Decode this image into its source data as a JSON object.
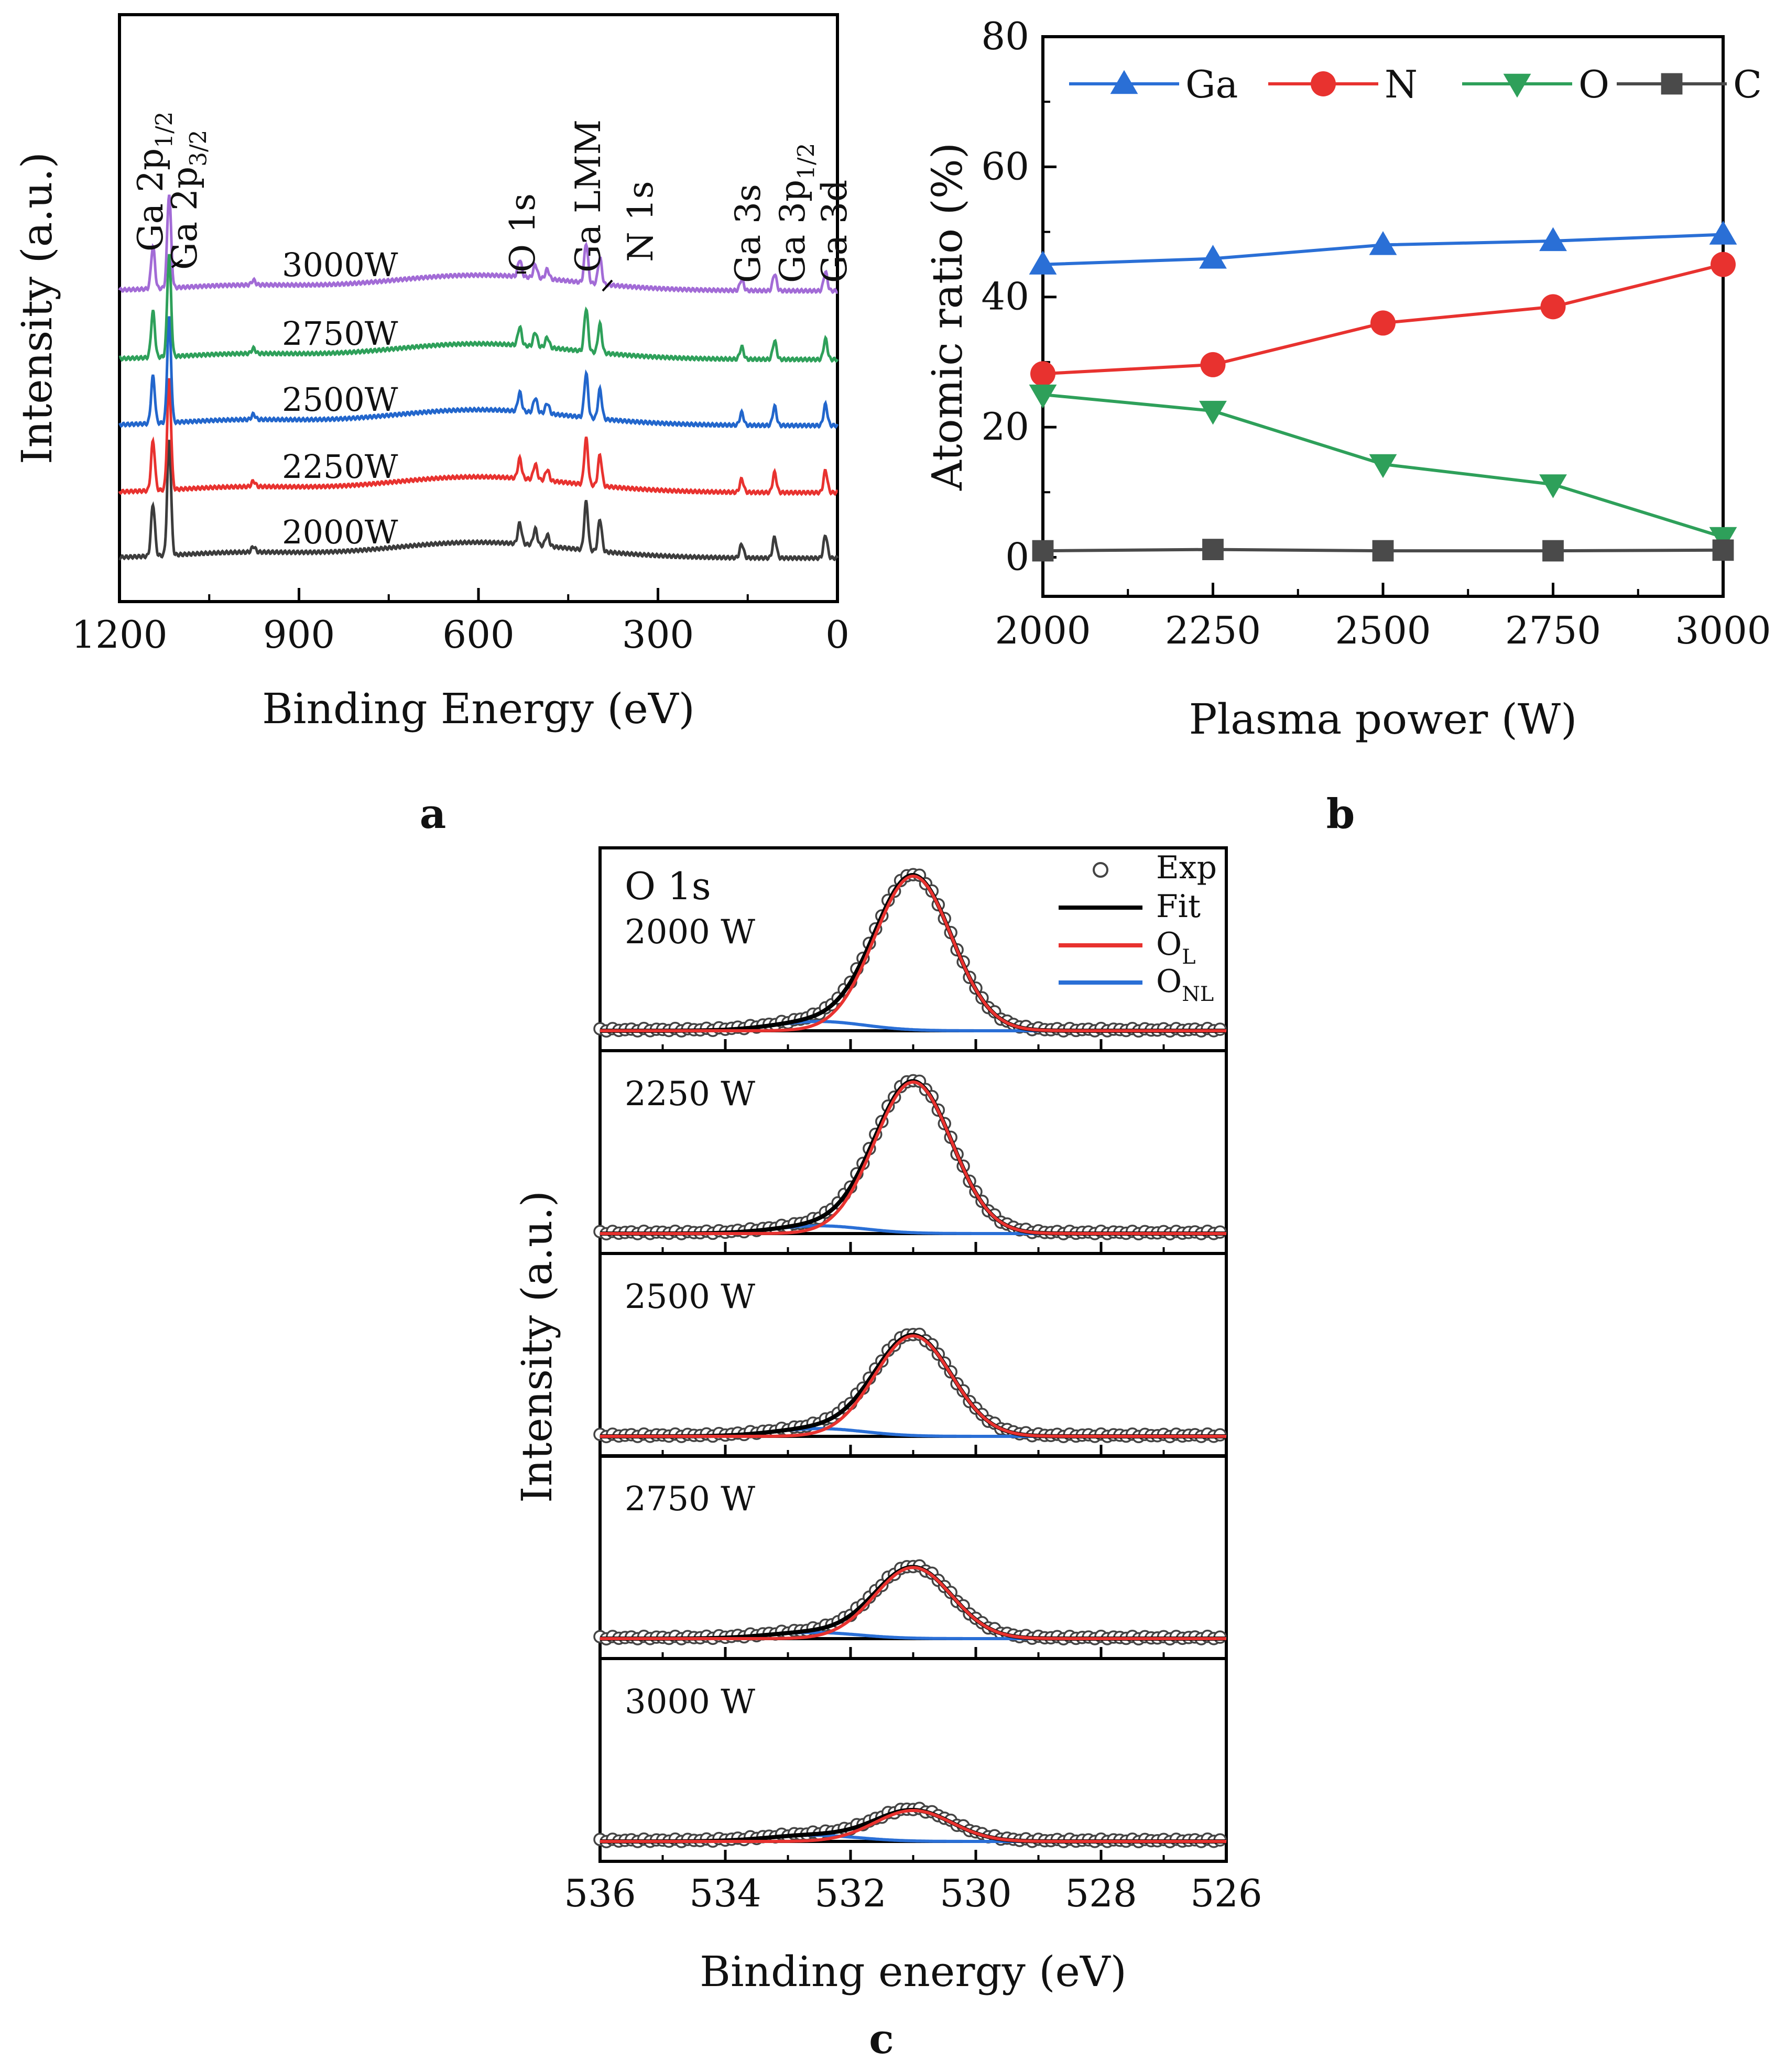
{
  "chart_data": [
    {
      "panel": "a",
      "type": "line",
      "panel_label": "a",
      "xlabel": "Binding Energy (eV)",
      "ylabel": "Intensity (a.u.)",
      "xlim": [
        1200,
        0
      ],
      "xticks": [
        1200,
        900,
        600,
        300,
        0
      ],
      "xtick_labels": [
        "1200",
        "900",
        "600",
        "300",
        "0"
      ],
      "series": [
        {
          "name": "2000W",
          "color": "#3c3c3c"
        },
        {
          "name": "2250W",
          "color": "#e8322f"
        },
        {
          "name": "2500W",
          "color": "#2266cc"
        },
        {
          "name": "2750W",
          "color": "#2ea05a"
        },
        {
          "name": "3000W",
          "color": "#a26bd6"
        }
      ],
      "peaks": [
        {
          "be": 1144,
          "rel": 0.45
        },
        {
          "be": 1117,
          "rel": 1.0
        },
        {
          "be": 976,
          "rel": 0.05
        },
        {
          "be": 531,
          "rel": 0.18
        },
        {
          "be": 505,
          "rel": 0.14
        },
        {
          "be": 485,
          "rel": 0.1
        },
        {
          "be": 420,
          "rel": 0.42
        },
        {
          "be": 397,
          "rel": 0.28
        },
        {
          "be": 160,
          "rel": 0.12
        },
        {
          "be": 105,
          "rel": 0.18
        },
        {
          "be": 20,
          "rel": 0.2
        }
      ],
      "peak_labels": [
        {
          "main": "Ga 2p",
          "sub": "1/2"
        },
        {
          "main": "Ga 2p",
          "sub": "3/2"
        },
        {
          "main": "O 1s",
          "sub": ""
        },
        {
          "main": "Ga LMM",
          "sub": ""
        },
        {
          "main": "N 1s",
          "sub": ""
        },
        {
          "main": "Ga 3s",
          "sub": ""
        },
        {
          "main": "Ga 3p",
          "sub": "1/2"
        },
        {
          "main": "Ga 3d",
          "sub": ""
        }
      ]
    },
    {
      "panel": "b",
      "type": "line",
      "panel_label": "b",
      "xlabel": "Plasma power (W)",
      "ylabel": "Atomic ratio (%)",
      "xlim": [
        2000,
        3000
      ],
      "ylim": [
        -6,
        80
      ],
      "xticks": [
        2000,
        2250,
        2500,
        2750,
        3000
      ],
      "xtick_labels": [
        "2000",
        "2250",
        "2500",
        "2750",
        "3000"
      ],
      "yticks": [
        0,
        20,
        40,
        60,
        80
      ],
      "ytick_labels": [
        "0",
        "20",
        "40",
        "60",
        "80"
      ],
      "x": [
        2000,
        2250,
        2500,
        2750,
        3000
      ],
      "series": [
        {
          "name": "Ga",
          "color": "#2a6fd6",
          "marker": "triangle-up",
          "values": [
            45.0,
            45.9,
            48.0,
            48.6,
            49.6
          ]
        },
        {
          "name": "N",
          "color": "#e8322f",
          "marker": "circle",
          "values": [
            28.2,
            29.6,
            36.0,
            38.5,
            45.0
          ]
        },
        {
          "name": "O",
          "color": "#2ea05a",
          "marker": "triangle-down",
          "values": [
            25.0,
            22.5,
            14.3,
            11.2,
            3.1
          ]
        },
        {
          "name": "C",
          "color": "#4a4a4a",
          "marker": "square",
          "values": [
            1.0,
            1.2,
            1.0,
            1.0,
            1.1
          ]
        }
      ]
    },
    {
      "panel": "c",
      "type": "line",
      "panel_label": "c",
      "title": "O 1s",
      "xlabel": "Binding energy (eV)",
      "ylabel": "Intensity (a.u.)",
      "xlim": [
        536,
        526
      ],
      "xticks": [
        536,
        534,
        532,
        530,
        528,
        526
      ],
      "xtick_labels": [
        "536",
        "534",
        "532",
        "530",
        "528",
        "526"
      ],
      "legend": [
        {
          "name": "Exp",
          "sub": "",
          "style": "open-circle",
          "color": "#444444"
        },
        {
          "name": "Fit",
          "sub": "",
          "style": "line",
          "color": "#000000"
        },
        {
          "name": "O",
          "sub": "L",
          "style": "line",
          "color": "#e8322f"
        },
        {
          "name": "O",
          "sub": "NL",
          "style": "line",
          "color": "#2a6fd6"
        }
      ],
      "colors": {
        "exp": "#444444",
        "fit": "#000000",
        "ol": "#e8322f",
        "onl": "#2a6fd6"
      },
      "subplots": [
        {
          "label": "2000 W",
          "ol_center": 531.0,
          "ol_height": 1.0,
          "ol_fwhm": 1.45,
          "onl_center": 532.5,
          "onl_height": 0.06,
          "onl_fwhm": 1.7
        },
        {
          "label": "2250 W",
          "ol_center": 531.0,
          "ol_height": 0.98,
          "ol_fwhm": 1.45,
          "onl_center": 532.5,
          "onl_height": 0.05,
          "onl_fwhm": 1.7
        },
        {
          "label": "2500 W",
          "ol_center": 531.0,
          "ol_height": 0.65,
          "ol_fwhm": 1.45,
          "onl_center": 532.5,
          "onl_height": 0.05,
          "onl_fwhm": 1.7
        },
        {
          "label": "2750 W",
          "ol_center": 531.0,
          "ol_height": 0.46,
          "ol_fwhm": 1.45,
          "onl_center": 532.6,
          "onl_height": 0.04,
          "onl_fwhm": 1.7
        },
        {
          "label": "3000 W",
          "ol_center": 531.0,
          "ol_height": 0.2,
          "ol_fwhm": 1.45,
          "onl_center": 532.6,
          "onl_height": 0.04,
          "onl_fwhm": 1.7
        }
      ]
    }
  ]
}
